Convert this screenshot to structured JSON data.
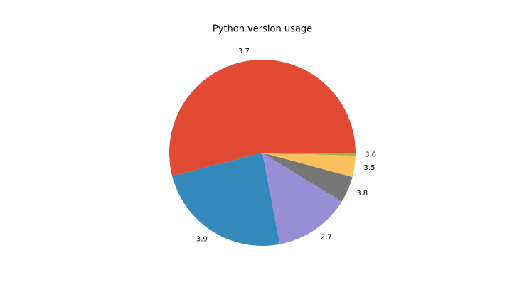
{
  "chart_data": {
    "type": "pie",
    "title": "Python version usage",
    "categories": [
      "3.7",
      "3.9",
      "2.7",
      "3.8",
      "3.5",
      "3.6"
    ],
    "values": [
      54,
      24,
      13.2,
      4.6,
      3.7,
      0.5
    ],
    "colors": [
      "#E24A33",
      "#348ABD",
      "#988ED5",
      "#777777",
      "#FBC15E",
      "#8EBA42"
    ],
    "start_angle": 0
  }
}
